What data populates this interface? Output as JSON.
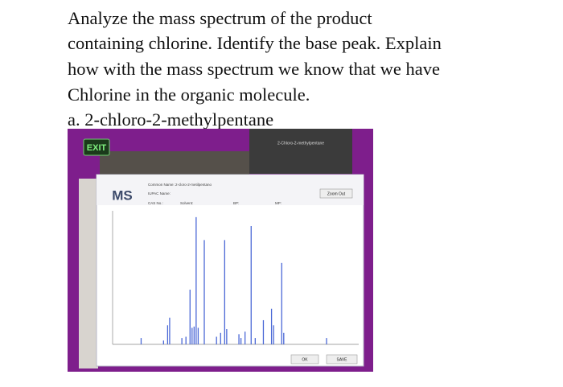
{
  "question": {
    "lines": [
      "Analyze the mass spectrum of the product",
      "containing chlorine. Identify the base peak. Explain",
      "how with the mass spectrum we know that we have",
      "Chlorine in the organic molecule.",
      "a. 2-chloro-2-methylpentane"
    ]
  },
  "screenshot": {
    "exit_button": "EXIT",
    "window_title": "2-Chloro-2-methylpentane",
    "dialog": {
      "heading": "MS",
      "common_name": "Common Name:  2-cloro-2-metilpentano",
      "iupac_name": "IUPAC Name:",
      "cas_no": "CAS No.:",
      "solvent": "Solvent:",
      "bp": "BP:",
      "mp": "MP:",
      "zoom_button": "Zoom Out",
      "ok_button": "OK",
      "save_button": "SAVE"
    },
    "spectrum": {
      "x": [
        14,
        25,
        27,
        28,
        34,
        36,
        38,
        39,
        40,
        41,
        42,
        45,
        51,
        53,
        55,
        56,
        62,
        63,
        65,
        68,
        70,
        74,
        78,
        79,
        83,
        84,
        105
      ],
      "y": [
        5,
        3,
        15,
        21,
        5,
        6,
        43,
        13,
        14,
        100,
        13,
        82,
        6,
        9,
        82,
        12,
        8,
        5,
        10,
        93,
        5,
        19,
        28,
        15,
        64,
        9,
        5
      ],
      "xlim": [
        0,
        120
      ],
      "ylim": [
        0,
        105
      ],
      "color": "#4a68d6"
    }
  }
}
